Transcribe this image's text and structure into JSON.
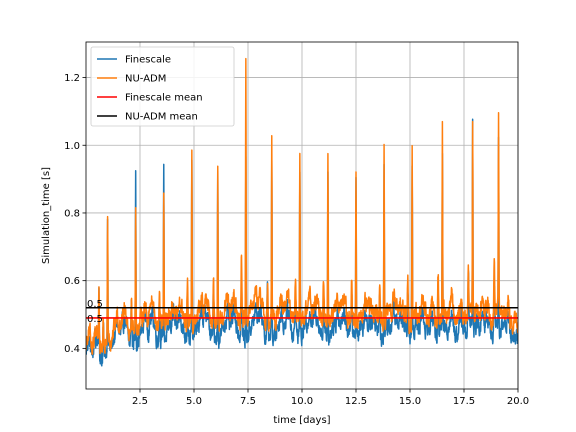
{
  "chart_data": {
    "type": "line",
    "title": "",
    "xlabel": "time [days]",
    "ylabel": "Simulation_time [s]",
    "xlim": [
      0.0,
      20.0
    ],
    "ylim": [
      0.28,
      1.305
    ],
    "xticks": [
      2.5,
      5.0,
      7.5,
      10.0,
      12.5,
      15.0,
      17.5,
      20.0
    ],
    "xtick_labels": [
      "2.5",
      "5.0",
      "7.5",
      "10.0",
      "12.5",
      "15.0",
      "17.5",
      "20.0"
    ],
    "yticks": [
      0.4,
      0.6,
      0.8,
      1.0,
      1.2
    ],
    "ytick_labels": [
      "0.4",
      "0.6",
      "0.8",
      "1.0",
      "1.2"
    ],
    "grid": true,
    "legend_position": "upper-left",
    "series": [
      {
        "name": "Finescale",
        "color": "#1f77b4",
        "baseline": [
          [
            0,
            0.34
          ],
          [
            0.5,
            0.37
          ],
          [
            1.0,
            0.4
          ],
          [
            1.5,
            0.42
          ],
          [
            2.0,
            0.43
          ],
          [
            3.0,
            0.44
          ],
          [
            5.0,
            0.445
          ],
          [
            10.0,
            0.45
          ],
          [
            15.0,
            0.45
          ],
          [
            20.0,
            0.45
          ]
        ],
        "peaks": [
          [
            0.6,
            0.55
          ],
          [
            1.0,
            0.8
          ],
          [
            2.3,
            0.94
          ],
          [
            3.6,
            0.95
          ],
          [
            4.9,
            0.96
          ],
          [
            6.1,
            0.93
          ],
          [
            7.4,
            0.98
          ],
          [
            8.6,
            0.95
          ],
          [
            9.9,
            0.96
          ],
          [
            11.2,
            0.93
          ],
          [
            12.5,
            0.95
          ],
          [
            13.8,
            0.95
          ],
          [
            15.1,
            0.95
          ],
          [
            16.5,
            0.96
          ],
          [
            17.9,
            1.07
          ],
          [
            19.1,
            1.0
          ]
        ],
        "mean": 0.49
      },
      {
        "name": "NU-ADM",
        "color": "#ff7f0e",
        "baseline": [
          [
            0,
            0.37
          ],
          [
            0.5,
            0.39
          ],
          [
            1.0,
            0.43
          ],
          [
            1.5,
            0.45
          ],
          [
            2.0,
            0.47
          ],
          [
            3.0,
            0.48
          ],
          [
            5.0,
            0.485
          ],
          [
            10.0,
            0.49
          ],
          [
            15.0,
            0.49
          ],
          [
            20.0,
            0.49
          ]
        ],
        "peaks": [
          [
            0.6,
            0.55
          ],
          [
            1.0,
            0.75
          ],
          [
            2.3,
            0.82
          ],
          [
            3.6,
            0.88
          ],
          [
            4.9,
            1.01
          ],
          [
            6.1,
            0.95
          ],
          [
            7.4,
            1.26
          ],
          [
            8.6,
            1.02
          ],
          [
            9.9,
            1.0
          ],
          [
            11.2,
            1.01
          ],
          [
            12.5,
            0.95
          ],
          [
            13.8,
            1.0
          ],
          [
            15.1,
            1.03
          ],
          [
            16.5,
            1.06
          ],
          [
            17.9,
            1.06
          ],
          [
            19.1,
            1.05
          ]
        ],
        "mean": 0.52
      },
      {
        "name": "Finescale mean",
        "color": "#ff0000",
        "value": 0.49,
        "label": "0.5"
      },
      {
        "name": "NU-ADM mean",
        "color": "#000000",
        "value": 0.52,
        "label": "0.5"
      }
    ]
  }
}
